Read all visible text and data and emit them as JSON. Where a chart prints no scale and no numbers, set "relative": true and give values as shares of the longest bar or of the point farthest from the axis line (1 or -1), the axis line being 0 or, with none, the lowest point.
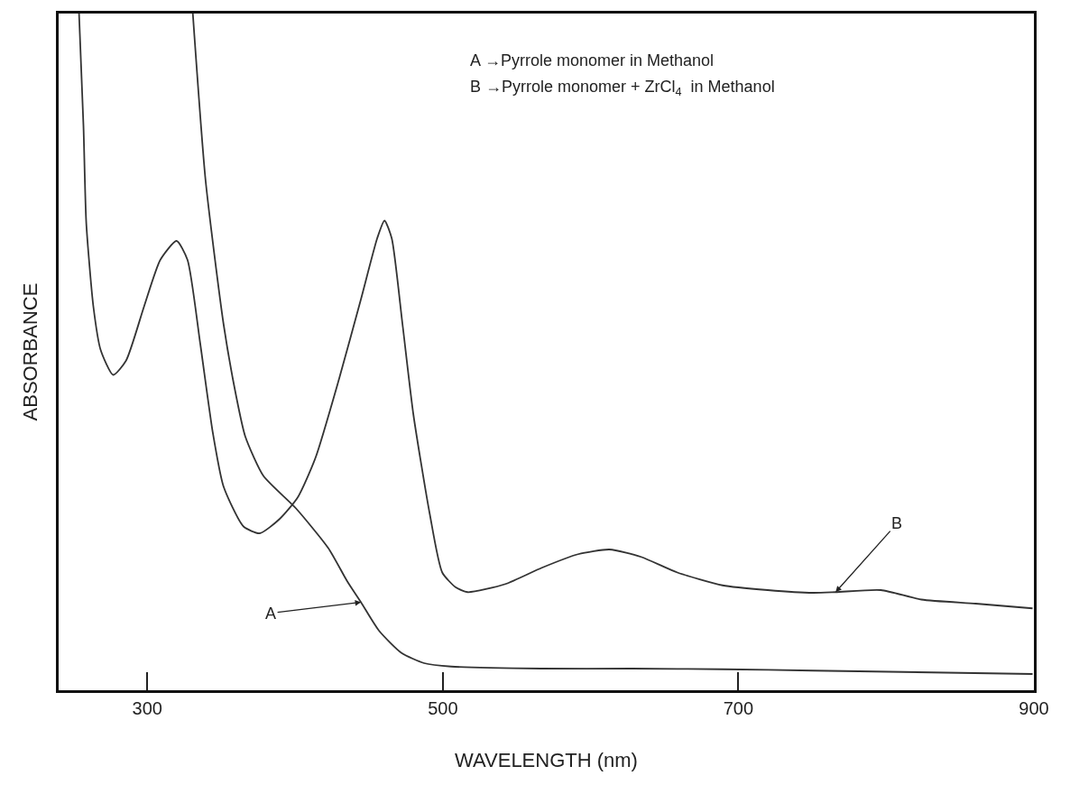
{
  "chart_data": {
    "type": "line",
    "relative": true,
    "xlabel": "WAVELENGTH (nm)",
    "ylabel": "ABSORBANCE",
    "xlim": [
      240,
      900
    ],
    "xticks": [
      300,
      500,
      700,
      900
    ],
    "marker": "none",
    "line_style": "solid",
    "series": [
      {
        "color": "#333333",
        "x": [
          330.8,
          339.4,
          351.6,
          360.2,
          366.3,
          378.5,
          400.5,
          422.5,
          435.3,
          444.6,
          456.8,
          472.1,
          487.4,
          505.7,
          566.9,
          628,
          689.3,
          750.5,
          811.7,
          899.1
        ],
        "values": [
          1.0,
          0.754,
          0.541,
          0.434,
          0.375,
          0.317,
          0.269,
          0.21,
          0.161,
          0.13,
          0.088,
          0.055,
          0.04,
          0.035,
          0.032,
          0.032,
          0.031,
          0.029,
          0.027,
          0.024
        ]
      },
      {
        "color": "#333333",
        "x": [
          253.8,
          256.8,
          258.7,
          263.5,
          268.4,
          276.9,
          285.6,
          297.8,
          308.8,
          319.8,
          327.2,
          335.7,
          344.3,
          351.6,
          365.1,
          376.1,
          389.5,
          401.8,
          413.9,
          429.9,
          444.6,
          455.6,
          460.5,
          465.4,
          472.7,
          480.1,
          491.1,
          499.6,
          508.8,
          516.7,
          542.4,
          567,
          591.5,
          612.8,
          634.2,
          658.7,
          689.3,
          719.9,
          750.5,
          765.8,
          796.4,
          823.9,
          860.6,
          899.1
        ],
        "values": [
          1.0,
          0.834,
          0.69,
          0.567,
          0.503,
          0.466,
          0.487,
          0.567,
          0.636,
          0.664,
          0.636,
          0.514,
          0.381,
          0.301,
          0.242,
          0.232,
          0.253,
          0.285,
          0.344,
          0.461,
          0.578,
          0.668,
          0.694,
          0.668,
          0.541,
          0.407,
          0.261,
          0.174,
          0.152,
          0.145,
          0.157,
          0.181,
          0.201,
          0.208,
          0.197,
          0.174,
          0.155,
          0.148,
          0.144,
          0.145,
          0.148,
          0.134,
          0.128,
          0.121
        ]
      }
    ],
    "annotations": [
      {
        "text": "A",
        "x": 444.6,
        "y": 0.13
      },
      {
        "text": "B",
        "x": 765.8,
        "y": 0.145
      },
      "A →Pyrrole monomer in Methanol",
      "B →Pyrrole monomer + ZrCl$_{4}$  in Methanol"
    ]
  }
}
